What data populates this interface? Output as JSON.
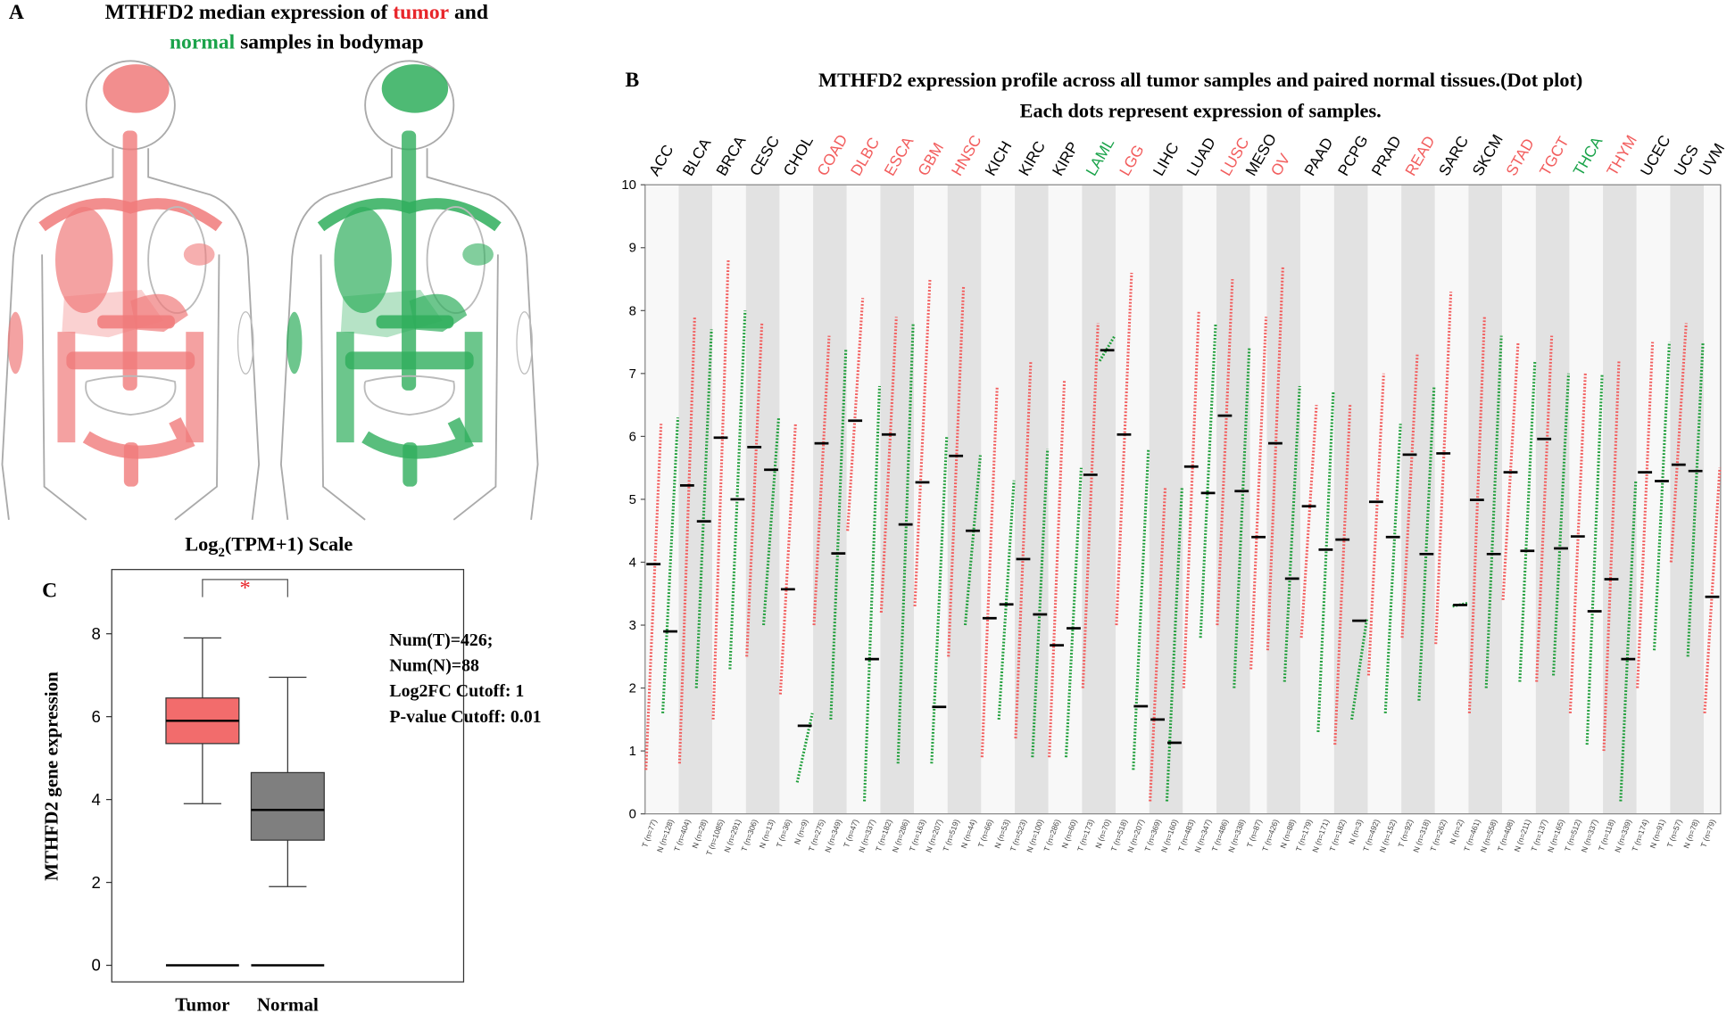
{
  "chart_data": [
    {
      "type": "bodymap",
      "label": "A",
      "title_lines": [
        [
          {
            "text": "MTHFD2 median expression of ",
            "color": "#000000"
          },
          {
            "text": "tumor",
            "color": "#e8262b"
          },
          {
            "text": " and",
            "color": "#000000"
          }
        ],
        [
          {
            "text": "normal",
            "color": "#1aa34a"
          },
          {
            "text": " samples in bodymap",
            "color": "#000000"
          }
        ]
      ],
      "tumor_color": "#f07a7a",
      "normal_color": "#2fae5c"
    },
    {
      "type": "dot",
      "label": "B",
      "title": "MTHFD2 expression profile across all tumor samples and paired normal tissues.(Dot plot)",
      "subtitle": "Each dots represent expression of samples.",
      "ylim": [
        0,
        10
      ],
      "yticks": [
        0,
        1,
        2,
        3,
        4,
        5,
        6,
        7,
        8,
        9,
        10
      ],
      "tumor_color": "#f25d5d",
      "normal_color": "#1f9e3a",
      "median_color": "#000000",
      "categories": [
        {
          "name": "ACC",
          "color": "#000000",
          "samples": [
            {
              "kind": "tumor",
              "label": "T (n=77)",
              "median": 3.97,
              "min": 0.7,
              "max": 6.2
            },
            {
              "kind": "normal",
              "label": "N (n=128)",
              "median": 2.9,
              "min": 1.6,
              "max": 6.3
            }
          ]
        },
        {
          "name": "BLCA",
          "color": "#000000",
          "samples": [
            {
              "kind": "tumor",
              "label": "T (n=404)",
              "median": 5.22,
              "min": 0.8,
              "max": 7.9
            },
            {
              "kind": "normal",
              "label": "N (n=28)",
              "median": 4.65,
              "min": 2.0,
              "max": 7.7
            }
          ]
        },
        {
          "name": "BRCA",
          "color": "#000000",
          "samples": [
            {
              "kind": "tumor",
              "label": "T (n=1085)",
              "median": 5.98,
              "min": 1.5,
              "max": 8.8
            },
            {
              "kind": "normal",
              "label": "N (n=291)",
              "median": 5.0,
              "min": 2.3,
              "max": 8.0
            }
          ]
        },
        {
          "name": "CESC",
          "color": "#000000",
          "samples": [
            {
              "kind": "tumor",
              "label": "T (n=306)",
              "median": 5.83,
              "min": 2.5,
              "max": 7.8
            },
            {
              "kind": "normal",
              "label": "N (n=13)",
              "median": 5.47,
              "min": 3.0,
              "max": 6.3
            }
          ]
        },
        {
          "name": "CHOL",
          "color": "#000000",
          "samples": [
            {
              "kind": "tumor",
              "label": "T (n=36)",
              "median": 3.57,
              "min": 1.9,
              "max": 6.2
            },
            {
              "kind": "normal",
              "label": "N (n=9)",
              "median": 1.4,
              "min": 0.5,
              "max": 1.6
            }
          ]
        },
        {
          "name": "COAD",
          "color": "#f25d5d",
          "samples": [
            {
              "kind": "tumor",
              "label": "T (n=275)",
              "median": 5.89,
              "min": 3.0,
              "max": 7.6
            },
            {
              "kind": "normal",
              "label": "N (n=349)",
              "median": 4.14,
              "min": 1.5,
              "max": 7.4
            }
          ]
        },
        {
          "name": "DLBC",
          "color": "#f25d5d",
          "samples": [
            {
              "kind": "tumor",
              "label": "T (n=47)",
              "median": 6.25,
              "min": 4.5,
              "max": 8.2
            },
            {
              "kind": "normal",
              "label": "N (n=337)",
              "median": 2.46,
              "min": 0.2,
              "max": 6.8
            }
          ]
        },
        {
          "name": "ESCA",
          "color": "#f25d5d",
          "samples": [
            {
              "kind": "tumor",
              "label": "T (n=182)",
              "median": 6.03,
              "min": 3.2,
              "max": 7.9
            },
            {
              "kind": "normal",
              "label": "N (n=286)",
              "median": 4.6,
              "min": 0.8,
              "max": 7.8
            }
          ]
        },
        {
          "name": "GBM",
          "color": "#f25d5d",
          "samples": [
            {
              "kind": "tumor",
              "label": "T (n=163)",
              "median": 5.27,
              "min": 3.3,
              "max": 8.5
            },
            {
              "kind": "normal",
              "label": "N (n=207)",
              "median": 1.7,
              "min": 0.8,
              "max": 6.0
            }
          ]
        },
        {
          "name": "HNSC",
          "color": "#f25d5d",
          "samples": [
            {
              "kind": "tumor",
              "label": "T (n=519)",
              "median": 5.69,
              "min": 2.5,
              "max": 8.4
            },
            {
              "kind": "normal",
              "label": "N (n=44)",
              "median": 4.5,
              "min": 3.0,
              "max": 5.7
            }
          ]
        },
        {
          "name": "KICH",
          "color": "#000000",
          "samples": [
            {
              "kind": "tumor",
              "label": "T (n=66)",
              "median": 3.11,
              "min": 0.9,
              "max": 6.8
            },
            {
              "kind": "normal",
              "label": "N (n=53)",
              "median": 3.33,
              "min": 1.5,
              "max": 5.3
            }
          ]
        },
        {
          "name": "KIRC",
          "color": "#000000",
          "samples": [
            {
              "kind": "tumor",
              "label": "T (n=523)",
              "median": 4.05,
              "min": 1.2,
              "max": 7.2
            },
            {
              "kind": "normal",
              "label": "N (n=100)",
              "median": 3.17,
              "min": 0.9,
              "max": 5.8
            }
          ]
        },
        {
          "name": "KIRP",
          "color": "#000000",
          "samples": [
            {
              "kind": "tumor",
              "label": "T (n=286)",
              "median": 2.68,
              "min": 0.9,
              "max": 6.9
            },
            {
              "kind": "normal",
              "label": "N (n=60)",
              "median": 2.95,
              "min": 0.9,
              "max": 5.5
            }
          ]
        },
        {
          "name": "LAML",
          "color": "#1aa34a",
          "samples": [
            {
              "kind": "tumor",
              "label": "T (n=173)",
              "median": 5.39,
              "min": 2.0,
              "max": 7.8
            },
            {
              "kind": "normal",
              "label": "N (n=70)",
              "median": 7.37,
              "min": 7.2,
              "max": 7.6
            }
          ]
        },
        {
          "name": "LGG",
          "color": "#f25d5d",
          "samples": [
            {
              "kind": "tumor",
              "label": "T (n=518)",
              "median": 6.03,
              "min": 3.0,
              "max": 8.6
            },
            {
              "kind": "normal",
              "label": "N (n=207)",
              "median": 1.71,
              "min": 0.7,
              "max": 5.8
            }
          ]
        },
        {
          "name": "LIHC",
          "color": "#000000",
          "samples": [
            {
              "kind": "tumor",
              "label": "T (n=369)",
              "median": 1.5,
              "min": 0.2,
              "max": 5.2
            },
            {
              "kind": "normal",
              "label": "N (n=160)",
              "median": 1.13,
              "min": 0.2,
              "max": 5.2
            }
          ]
        },
        {
          "name": "LUAD",
          "color": "#000000",
          "samples": [
            {
              "kind": "tumor",
              "label": "T (n=483)",
              "median": 5.52,
              "min": 2.0,
              "max": 8.0
            },
            {
              "kind": "normal",
              "label": "N (n=347)",
              "median": 5.1,
              "min": 2.8,
              "max": 7.8
            }
          ]
        },
        {
          "name": "LUSC",
          "color": "#f25d5d",
          "samples": [
            {
              "kind": "tumor",
              "label": "T (n=486)",
              "median": 6.33,
              "min": 3.0,
              "max": 8.5
            },
            {
              "kind": "normal",
              "label": "N (n=338)",
              "median": 5.13,
              "min": 2.0,
              "max": 7.4
            }
          ]
        },
        {
          "name": "MESO",
          "color": "#000000",
          "samples": [
            {
              "kind": "tumor",
              "label": "T (n=87)",
              "median": 4.4,
              "min": 2.3,
              "max": 7.9
            }
          ]
        },
        {
          "name": "OV",
          "color": "#f25d5d",
          "samples": [
            {
              "kind": "tumor",
              "label": "T (n=426)",
              "median": 5.89,
              "min": 2.6,
              "max": 8.7
            },
            {
              "kind": "normal",
              "label": "N (n=88)",
              "median": 3.74,
              "min": 2.1,
              "max": 6.8
            }
          ]
        },
        {
          "name": "PAAD",
          "color": "#000000",
          "samples": [
            {
              "kind": "tumor",
              "label": "T (n=179)",
              "median": 4.89,
              "min": 2.8,
              "max": 6.5
            },
            {
              "kind": "normal",
              "label": "N (n=171)",
              "median": 4.2,
              "min": 1.3,
              "max": 6.7
            }
          ]
        },
        {
          "name": "PCPG",
          "color": "#000000",
          "samples": [
            {
              "kind": "tumor",
              "label": "T (n=182)",
              "median": 4.36,
              "min": 1.1,
              "max": 6.5
            },
            {
              "kind": "normal",
              "label": "N (n=3)",
              "median": 3.07,
              "min": 1.5,
              "max": 3.1
            }
          ]
        },
        {
          "name": "PRAD",
          "color": "#000000",
          "samples": [
            {
              "kind": "tumor",
              "label": "T (n=492)",
              "median": 4.96,
              "min": 2.2,
              "max": 7.0
            },
            {
              "kind": "normal",
              "label": "N (n=152)",
              "median": 4.4,
              "min": 1.6,
              "max": 6.2
            }
          ]
        },
        {
          "name": "READ",
          "color": "#f25d5d",
          "samples": [
            {
              "kind": "tumor",
              "label": "T (n=92)",
              "median": 5.71,
              "min": 2.8,
              "max": 7.3
            },
            {
              "kind": "normal",
              "label": "N (n=318)",
              "median": 4.13,
              "min": 1.8,
              "max": 6.8
            }
          ]
        },
        {
          "name": "SARC",
          "color": "#000000",
          "samples": [
            {
              "kind": "tumor",
              "label": "T (n=262)",
              "median": 5.73,
              "min": 2.7,
              "max": 8.3
            },
            {
              "kind": "normal",
              "label": "N (n=2)",
              "median": 3.32,
              "min": 3.3,
              "max": 3.35
            }
          ]
        },
        {
          "name": "SKCM",
          "color": "#000000",
          "samples": [
            {
              "kind": "tumor",
              "label": "T (n=461)",
              "median": 4.99,
              "min": 1.6,
              "max": 7.9
            },
            {
              "kind": "normal",
              "label": "N (n=558)",
              "median": 4.13,
              "min": 2.0,
              "max": 7.6
            }
          ]
        },
        {
          "name": "STAD",
          "color": "#f25d5d",
          "samples": [
            {
              "kind": "tumor",
              "label": "T (n=408)",
              "median": 5.43,
              "min": 3.4,
              "max": 7.5
            },
            {
              "kind": "normal",
              "label": "N (n=211)",
              "median": 4.18,
              "min": 2.1,
              "max": 7.2
            }
          ]
        },
        {
          "name": "TGCT",
          "color": "#f25d5d",
          "samples": [
            {
              "kind": "tumor",
              "label": "T (n=137)",
              "median": 5.96,
              "min": 2.1,
              "max": 7.6
            },
            {
              "kind": "normal",
              "label": "N (n=165)",
              "median": 4.22,
              "min": 2.2,
              "max": 7.0
            }
          ]
        },
        {
          "name": "THCA",
          "color": "#1aa34a",
          "samples": [
            {
              "kind": "tumor",
              "label": "T (n=512)",
              "median": 4.41,
              "min": 1.6,
              "max": 7.0
            },
            {
              "kind": "normal",
              "label": "N (n=337)",
              "median": 3.22,
              "min": 1.1,
              "max": 7.0
            }
          ]
        },
        {
          "name": "THYM",
          "color": "#f25d5d",
          "samples": [
            {
              "kind": "tumor",
              "label": "T (n=118)",
              "median": 3.73,
              "min": 1.0,
              "max": 7.2
            },
            {
              "kind": "normal",
              "label": "N (n=339)",
              "median": 2.46,
              "min": 0.2,
              "max": 5.3
            }
          ]
        },
        {
          "name": "UCEC",
          "color": "#000000",
          "samples": [
            {
              "kind": "tumor",
              "label": "T (n=174)",
              "median": 5.43,
              "min": 2.0,
              "max": 7.5
            },
            {
              "kind": "normal",
              "label": "N (n=91)",
              "median": 5.29,
              "min": 2.6,
              "max": 7.5
            }
          ]
        },
        {
          "name": "UCS",
          "color": "#000000",
          "samples": [
            {
              "kind": "tumor",
              "label": "T (n=57)",
              "median": 5.55,
              "min": 4.0,
              "max": 7.8
            },
            {
              "kind": "normal",
              "label": "N (n=78)",
              "median": 5.45,
              "min": 2.5,
              "max": 7.5
            }
          ]
        },
        {
          "name": "UVM",
          "color": "#000000",
          "samples": [
            {
              "kind": "tumor",
              "label": "T (n=79)",
              "median": 3.45,
              "min": 1.6,
              "max": 5.5
            }
          ]
        }
      ]
    },
    {
      "type": "box",
      "label": "C",
      "title_parts": [
        "Log",
        "2",
        "(TPM+1) Scale"
      ],
      "ylabel": "MTHFD2 gene expression",
      "ylim": [
        -0.4,
        9.55
      ],
      "yticks": [
        0,
        2,
        4,
        6,
        8
      ],
      "boxes": [
        {
          "name": "Tumor",
          "color": "#f26c6c",
          "whisker_low": 3.9,
          "q1": 5.35,
          "median": 5.9,
          "q3": 6.45,
          "whisker_high": 7.9,
          "zero_line": 0
        },
        {
          "name": "Normal",
          "color": "#7f7f7f",
          "whisker_low": 1.9,
          "q1": 3.02,
          "median": 3.75,
          "q3": 4.65,
          "whisker_high": 6.95,
          "zero_line": 0
        }
      ],
      "significance": "*",
      "significance_color": "#e8262b",
      "stats": [
        "Num(T)=426;",
        "Num(N)=88",
        "Log2FC Cutoff: 1",
        "P-value Cutoff: 0.01"
      ]
    }
  ]
}
